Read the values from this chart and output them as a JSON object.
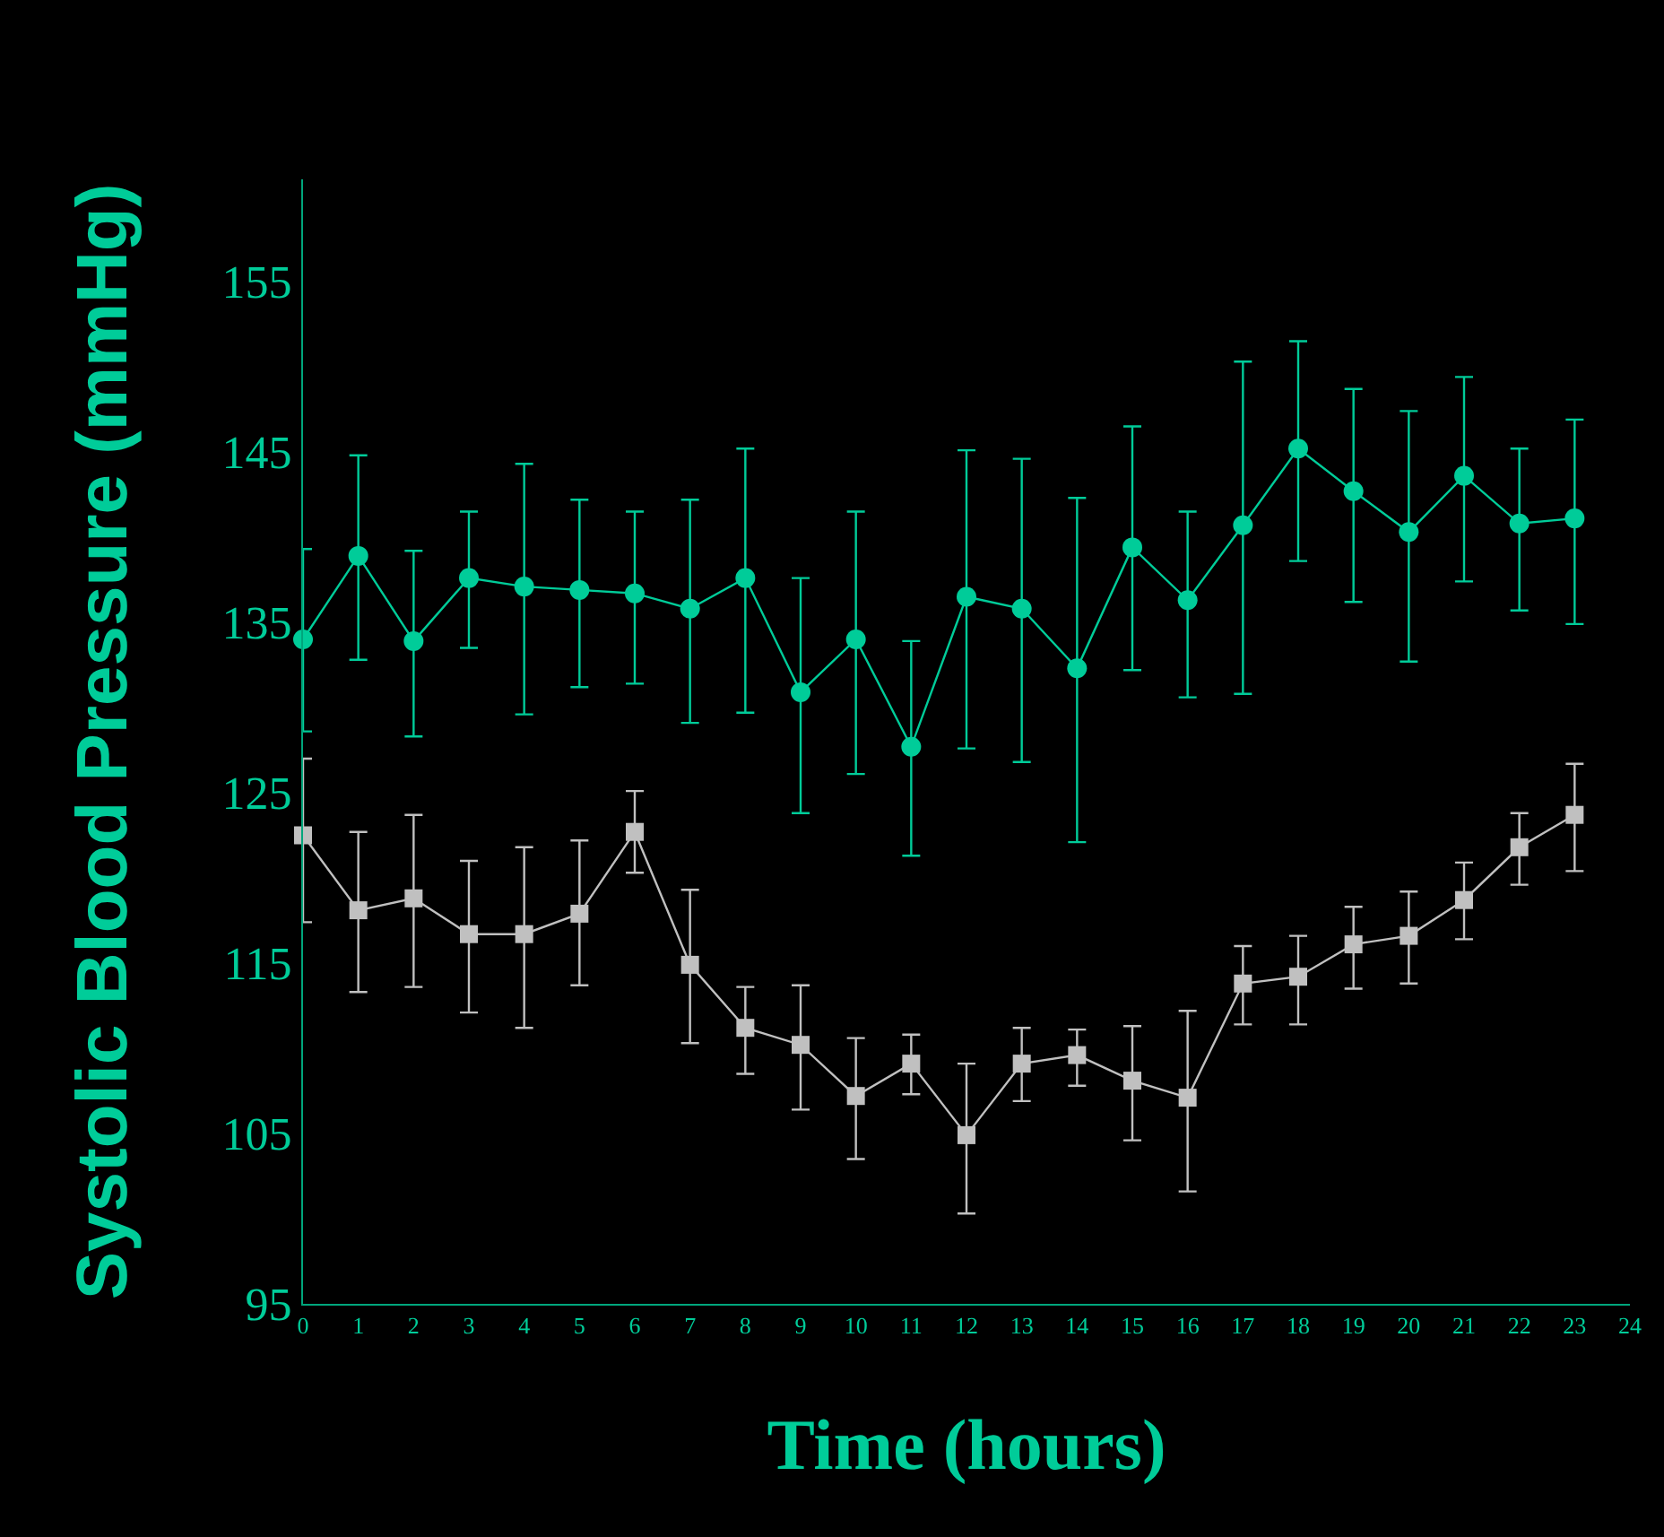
{
  "chart_data": {
    "type": "line",
    "xlabel": "Time (hours)",
    "ylabel": "Systolic Blood Pressure (mmHg)",
    "x": [
      0,
      1,
      2,
      3,
      4,
      5,
      6,
      7,
      8,
      9,
      10,
      11,
      12,
      13,
      14,
      15,
      16,
      17,
      18,
      19,
      20,
      21,
      22,
      23
    ],
    "xlim": [
      0,
      24
    ],
    "xticks": [
      0,
      1,
      2,
      3,
      4,
      5,
      6,
      7,
      8,
      9,
      10,
      11,
      12,
      13,
      14,
      15,
      16,
      17,
      18,
      19,
      20,
      21,
      22,
      23,
      24
    ],
    "ylim": [
      95,
      161
    ],
    "yticks": [
      95,
      105,
      115,
      125,
      135,
      145,
      155
    ],
    "grid": false,
    "line_style": "solid",
    "series": [
      {
        "color": "#00cc99",
        "marker": "circle",
        "values": [
          134.0,
          138.9,
          133.9,
          137.6,
          137.1,
          136.9,
          136.7,
          135.8,
          137.6,
          130.9,
          134.0,
          127.7,
          136.5,
          135.8,
          132.3,
          139.4,
          136.3,
          140.7,
          145.2,
          142.7,
          140.3,
          143.6,
          140.8,
          141.1
        ],
        "errors": [
          [
            128.6,
            139.3
          ],
          [
            132.8,
            144.8
          ],
          [
            128.3,
            139.2
          ],
          [
            133.5,
            141.5
          ],
          [
            129.6,
            144.3
          ],
          [
            131.2,
            142.2
          ],
          [
            131.4,
            141.5
          ],
          [
            129.1,
            142.2
          ],
          [
            129.7,
            145.2
          ],
          [
            123.8,
            137.6
          ],
          [
            126.1,
            141.5
          ],
          [
            121.3,
            133.9
          ],
          [
            127.6,
            145.1
          ],
          [
            126.8,
            144.6
          ],
          [
            122.1,
            142.3
          ],
          [
            132.2,
            146.5
          ],
          [
            130.6,
            141.5
          ],
          [
            130.8,
            150.3
          ],
          [
            138.6,
            151.5
          ],
          [
            136.2,
            148.7
          ],
          [
            132.7,
            147.4
          ],
          [
            137.4,
            149.4
          ],
          [
            135.7,
            145.2
          ],
          [
            134.9,
            146.9
          ]
        ]
      },
      {
        "color": "#c0c0c0",
        "marker": "square",
        "values": [
          122.5,
          118.1,
          118.8,
          116.7,
          116.7,
          117.9,
          122.7,
          114.9,
          111.2,
          110.2,
          107.2,
          109.1,
          104.9,
          109.1,
          109.6,
          108.1,
          107.1,
          113.8,
          114.2,
          116.1,
          116.6,
          118.7,
          121.8,
          123.7
        ],
        "errors": [
          [
            117.4,
            127.0
          ],
          [
            113.3,
            122.7
          ],
          [
            113.6,
            123.7
          ],
          [
            112.1,
            121.0
          ],
          [
            111.2,
            121.8
          ],
          [
            113.7,
            122.2
          ],
          [
            120.3,
            125.1
          ],
          [
            110.3,
            119.3
          ],
          [
            108.5,
            113.6
          ],
          [
            106.4,
            113.7
          ],
          [
            103.5,
            110.6
          ],
          [
            107.3,
            110.8
          ],
          [
            100.3,
            109.1
          ],
          [
            106.9,
            111.2
          ],
          [
            107.8,
            111.1
          ],
          [
            104.6,
            111.3
          ],
          [
            101.6,
            112.2
          ],
          [
            111.4,
            116.0
          ],
          [
            111.4,
            116.6
          ],
          [
            113.5,
            118.3
          ],
          [
            113.8,
            119.2
          ],
          [
            116.4,
            120.9
          ],
          [
            119.6,
            123.8
          ],
          [
            120.4,
            126.7
          ]
        ]
      }
    ]
  }
}
